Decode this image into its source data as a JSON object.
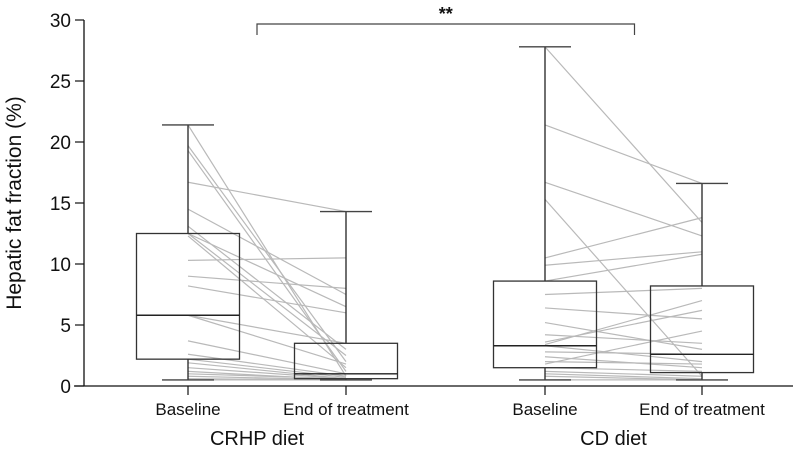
{
  "chart_data": {
    "type": "boxplot-paired",
    "title": "",
    "ylabel": "Hepatic fat fraction (%)",
    "ylim": [
      0,
      30
    ],
    "yticks": [
      0,
      5,
      10,
      15,
      20,
      25,
      30
    ],
    "grid": false,
    "groups": [
      {
        "label": "CRHP diet",
        "categories": [
          "Baseline",
          "End of treatment"
        ],
        "boxes": [
          {
            "min": 0.5,
            "q1": 2.2,
            "median": 5.8,
            "q3": 12.5,
            "max": 21.4
          },
          {
            "min": 0.5,
            "q1": 0.6,
            "median": 1.0,
            "q3": 3.5,
            "max": 14.3
          }
        ],
        "pairs": [
          [
            21.4,
            0.8
          ],
          [
            19.7,
            2.0
          ],
          [
            19.3,
            1.2
          ],
          [
            16.7,
            14.3
          ],
          [
            14.5,
            7.5
          ],
          [
            13.1,
            3.0
          ],
          [
            12.5,
            6.5
          ],
          [
            12.5,
            2.5
          ],
          [
            12.3,
            1.5
          ],
          [
            10.3,
            10.5
          ],
          [
            9.0,
            8.0
          ],
          [
            8.2,
            6.0
          ],
          [
            5.8,
            3.5
          ],
          [
            5.8,
            1.8
          ],
          [
            3.7,
            1.0
          ],
          [
            2.6,
            0.8
          ],
          [
            2.2,
            0.7
          ],
          [
            1.9,
            0.6
          ],
          [
            1.5,
            0.6
          ],
          [
            1.2,
            0.5
          ],
          [
            1.0,
            0.6
          ],
          [
            0.8,
            0.5
          ],
          [
            0.6,
            0.5
          ],
          [
            0.5,
            0.5
          ]
        ]
      },
      {
        "label": "CD diet",
        "categories": [
          "Baseline",
          "End of treatment"
        ],
        "boxes": [
          {
            "min": 0.5,
            "q1": 1.5,
            "median": 3.3,
            "q3": 8.6,
            "max": 27.8
          },
          {
            "min": 0.5,
            "q1": 1.1,
            "median": 2.6,
            "q3": 8.2,
            "max": 16.6
          }
        ],
        "pairs": [
          [
            27.8,
            13.4
          ],
          [
            21.4,
            16.6
          ],
          [
            16.7,
            12.3
          ],
          [
            15.3,
            0.8
          ],
          [
            10.5,
            13.8
          ],
          [
            9.9,
            11.0
          ],
          [
            8.6,
            10.8
          ],
          [
            7.5,
            8.0
          ],
          [
            6.4,
            5.5
          ],
          [
            5.2,
            3.0
          ],
          [
            4.2,
            3.5
          ],
          [
            3.6,
            6.2
          ],
          [
            3.4,
            7.0
          ],
          [
            3.3,
            2.0
          ],
          [
            2.8,
            2.6
          ],
          [
            2.4,
            1.5
          ],
          [
            2.0,
            1.8
          ],
          [
            1.8,
            4.5
          ],
          [
            1.5,
            1.2
          ],
          [
            1.2,
            0.8
          ],
          [
            1.0,
            0.6
          ],
          [
            0.8,
            0.5
          ],
          [
            0.5,
            0.5
          ]
        ]
      }
    ],
    "annotations": [
      {
        "type": "significance-bracket",
        "text": "**",
        "from": "CRHP diet",
        "to": "CD diet"
      }
    ]
  }
}
